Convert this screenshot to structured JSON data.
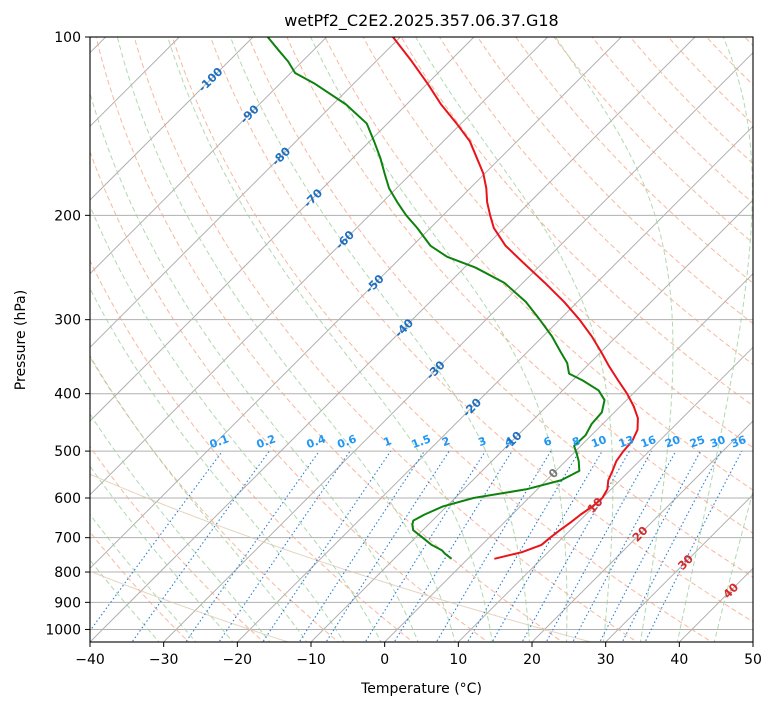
{
  "chart_data": {
    "type": "line",
    "subtype": "skew-t log-p diagram",
    "title": "wetPf2_C2E2.2025.357.06.37.G18",
    "xlabel": "Temperature (°C)",
    "ylabel": "Pressure (hPa)",
    "xlim": [
      -40,
      50
    ],
    "ylim": [
      1050,
      100
    ],
    "x_ticks": [
      -40,
      -30,
      -20,
      -10,
      0,
      10,
      20,
      30,
      40,
      50
    ],
    "x_tick_labels": [
      "−40",
      "−30",
      "−20",
      "−10",
      "0",
      "10",
      "20",
      "30",
      "40",
      "50"
    ],
    "y_ticks": [
      100,
      200,
      300,
      400,
      500,
      600,
      700,
      800,
      900,
      1000
    ],
    "y_tick_labels": [
      "100",
      "200",
      "300",
      "400",
      "500",
      "600",
      "700",
      "800",
      "900",
      "1000"
    ],
    "isotherm_labels": [
      {
        "value": -100,
        "label": "-100"
      },
      {
        "value": -90,
        "label": "-90"
      },
      {
        "value": -80,
        "label": "-80"
      },
      {
        "value": -70,
        "label": "-70"
      },
      {
        "value": -60,
        "label": "-60"
      },
      {
        "value": -50,
        "label": "-50"
      },
      {
        "value": -40,
        "label": "-40"
      },
      {
        "value": -30,
        "label": "-30"
      },
      {
        "value": -20,
        "label": "-20"
      },
      {
        "value": -10,
        "label": "-10"
      },
      {
        "value": 0,
        "label": "0"
      },
      {
        "value": 10,
        "label": "10"
      },
      {
        "value": 20,
        "label": "20"
      },
      {
        "value": 30,
        "label": "30"
      },
      {
        "value": 40,
        "label": "40"
      }
    ],
    "mixing_ratio_labels": [
      "0.1",
      "0.2",
      "0.4",
      "0.6",
      "1",
      "1.5",
      "2",
      "3",
      "4",
      "6",
      "8",
      "10",
      "13",
      "16",
      "20",
      "25",
      "30",
      "36"
    ],
    "mixing_ratio_values": [
      0.1,
      0.2,
      0.4,
      0.6,
      1,
      1.5,
      2,
      3,
      4,
      6,
      8,
      10,
      13,
      16,
      20,
      25,
      30,
      36
    ],
    "series": [
      {
        "name": "Temperature",
        "color": "#e8141a",
        "points": [
          [
            760,
            3.6
          ],
          [
            740,
            6.5
          ],
          [
            720,
            8.1
          ],
          [
            700,
            8.3
          ],
          [
            680,
            8.6
          ],
          [
            660,
            9.0
          ],
          [
            640,
            9.3
          ],
          [
            620,
            9.8
          ],
          [
            600,
            10.0
          ],
          [
            580,
            9.5
          ],
          [
            560,
            8.4
          ],
          [
            540,
            7.7
          ],
          [
            520,
            6.9
          ],
          [
            500,
            6.5
          ],
          [
            480,
            6.3
          ],
          [
            460,
            5.5
          ],
          [
            440,
            4.0
          ],
          [
            420,
            1.8
          ],
          [
            400,
            -0.8
          ],
          [
            380,
            -3.8
          ],
          [
            360,
            -6.9
          ],
          [
            340,
            -10.0
          ],
          [
            320,
            -13.4
          ],
          [
            300,
            -17.3
          ],
          [
            280,
            -21.8
          ],
          [
            260,
            -27.0
          ],
          [
            240,
            -32.8
          ],
          [
            225,
            -37.4
          ],
          [
            210,
            -41.4
          ],
          [
            200,
            -43.6
          ],
          [
            190,
            -45.8
          ],
          [
            180,
            -47.8
          ],
          [
            170,
            -50.2
          ],
          [
            160,
            -53.2
          ],
          [
            150,
            -56.4
          ],
          [
            140,
            -60.6
          ],
          [
            130,
            -65.3
          ],
          [
            120,
            -69.9
          ],
          [
            110,
            -75.1
          ],
          [
            100,
            -81.0
          ]
        ]
      },
      {
        "name": "Dewpoint",
        "color": "#0e820e",
        "points": [
          [
            760,
            -2.2
          ],
          [
            745,
            -3.8
          ],
          [
            735,
            -4.7
          ],
          [
            720,
            -6.8
          ],
          [
            700,
            -9.0
          ],
          [
            680,
            -11.3
          ],
          [
            665,
            -12.2
          ],
          [
            655,
            -12.6
          ],
          [
            640,
            -11.9
          ],
          [
            620,
            -10.5
          ],
          [
            600,
            -7.5
          ],
          [
            580,
            -1.5
          ],
          [
            560,
            2.0
          ],
          [
            540,
            3.2
          ],
          [
            520,
            1.8
          ],
          [
            505,
            0.5
          ],
          [
            490,
            -0.9
          ],
          [
            470,
            -0.8
          ],
          [
            450,
            -1.5
          ],
          [
            430,
            -1.7
          ],
          [
            410,
            -3.0
          ],
          [
            395,
            -5.1
          ],
          [
            380,
            -8.6
          ],
          [
            370,
            -11.4
          ],
          [
            355,
            -13.1
          ],
          [
            340,
            -15.5
          ],
          [
            320,
            -18.8
          ],
          [
            300,
            -22.7
          ],
          [
            280,
            -27.0
          ],
          [
            260,
            -32.5
          ],
          [
            245,
            -38.5
          ],
          [
            235,
            -43.8
          ],
          [
            225,
            -47.6
          ],
          [
            210,
            -51.8
          ],
          [
            200,
            -55.0
          ],
          [
            190,
            -58.0
          ],
          [
            180,
            -61.0
          ],
          [
            170,
            -63.6
          ],
          [
            160,
            -66.3
          ],
          [
            150,
            -69.4
          ],
          [
            140,
            -72.8
          ],
          [
            130,
            -78.2
          ],
          [
            120,
            -85.2
          ],
          [
            115,
            -89.4
          ],
          [
            110,
            -91.9
          ],
          [
            105,
            -94.9
          ],
          [
            100,
            -98.0
          ]
        ]
      }
    ]
  }
}
